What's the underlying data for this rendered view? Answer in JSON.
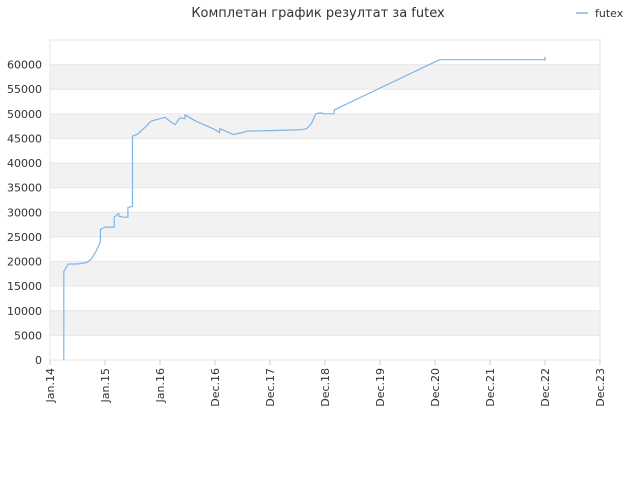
{
  "chart_data": {
    "type": "line",
    "title": "Комплетан график резултат за futex",
    "xlabel": "",
    "ylabel": "",
    "legend": {
      "position": "top-right",
      "entries": [
        "futex"
      ]
    },
    "grid": true,
    "colors": {
      "line": "#7cb5ec",
      "band": "#f2f2f2",
      "grid": "#e6e6e6",
      "axis": "#cccccc"
    },
    "x_ticks": [
      "Jan.14",
      "Jan.15",
      "Jan.16",
      "Dec.16",
      "Dec.17",
      "Dec.18",
      "Dec.19",
      "Dec.20",
      "Dec.21",
      "Dec.22",
      "Dec.23"
    ],
    "ylim": [
      0,
      65000
    ],
    "y_ticks": [
      "0",
      "5000",
      "10000",
      "15000",
      "20000",
      "25000",
      "30000",
      "35000",
      "40000",
      "45000",
      "50000",
      "55000",
      "60000"
    ],
    "series": [
      {
        "name": "futex",
        "points": [
          [
            "2014-04",
            0
          ],
          [
            "2014-04",
            15000
          ],
          [
            "2014-04",
            18000
          ],
          [
            "2014-05",
            19500
          ],
          [
            "2014-07",
            19500
          ],
          [
            "2014-09",
            19800
          ],
          [
            "2014-10",
            20500
          ],
          [
            "2014-11",
            22000
          ],
          [
            "2014-12",
            24000
          ],
          [
            "2014-12",
            26500
          ],
          [
            "2015-01",
            27000
          ],
          [
            "2015-03",
            27000
          ],
          [
            "2015-03",
            29000
          ],
          [
            "2015-04",
            29800
          ],
          [
            "2015-04",
            29200
          ],
          [
            "2015-05",
            29000
          ],
          [
            "2015-06",
            29000
          ],
          [
            "2015-06",
            31000
          ],
          [
            "2015-07",
            31200
          ],
          [
            "2015-07",
            45500
          ],
          [
            "2015-08",
            45800
          ],
          [
            "2015-10",
            47500
          ],
          [
            "2015-11",
            48500
          ],
          [
            "2016-02",
            49300
          ],
          [
            "2016-03",
            48500
          ],
          [
            "2016-04",
            47800
          ],
          [
            "2016-05",
            49200
          ],
          [
            "2016-06",
            49000
          ],
          [
            "2016-06",
            49800
          ],
          [
            "2016-08",
            48600
          ],
          [
            "2016-12",
            46800
          ],
          [
            "2017-01",
            46200
          ],
          [
            "2017-01",
            47000
          ],
          [
            "2017-03",
            46200
          ],
          [
            "2017-04",
            45800
          ],
          [
            "2017-06",
            46200
          ],
          [
            "2017-07",
            46500
          ],
          [
            "2017-12",
            46600
          ],
          [
            "2018-04",
            46700
          ],
          [
            "2018-07",
            46800
          ],
          [
            "2018-08",
            47000
          ],
          [
            "2018-09",
            48000
          ],
          [
            "2018-10",
            50000
          ],
          [
            "2018-11",
            50200
          ],
          [
            "2018-12",
            50000
          ],
          [
            "2019-02",
            50000
          ],
          [
            "2019-02",
            50800
          ],
          [
            "2021-01",
            61000
          ],
          [
            "2022-12",
            61000
          ],
          [
            "2022-12",
            61500
          ],
          [
            "2022-12",
            60800
          ]
        ]
      }
    ]
  }
}
